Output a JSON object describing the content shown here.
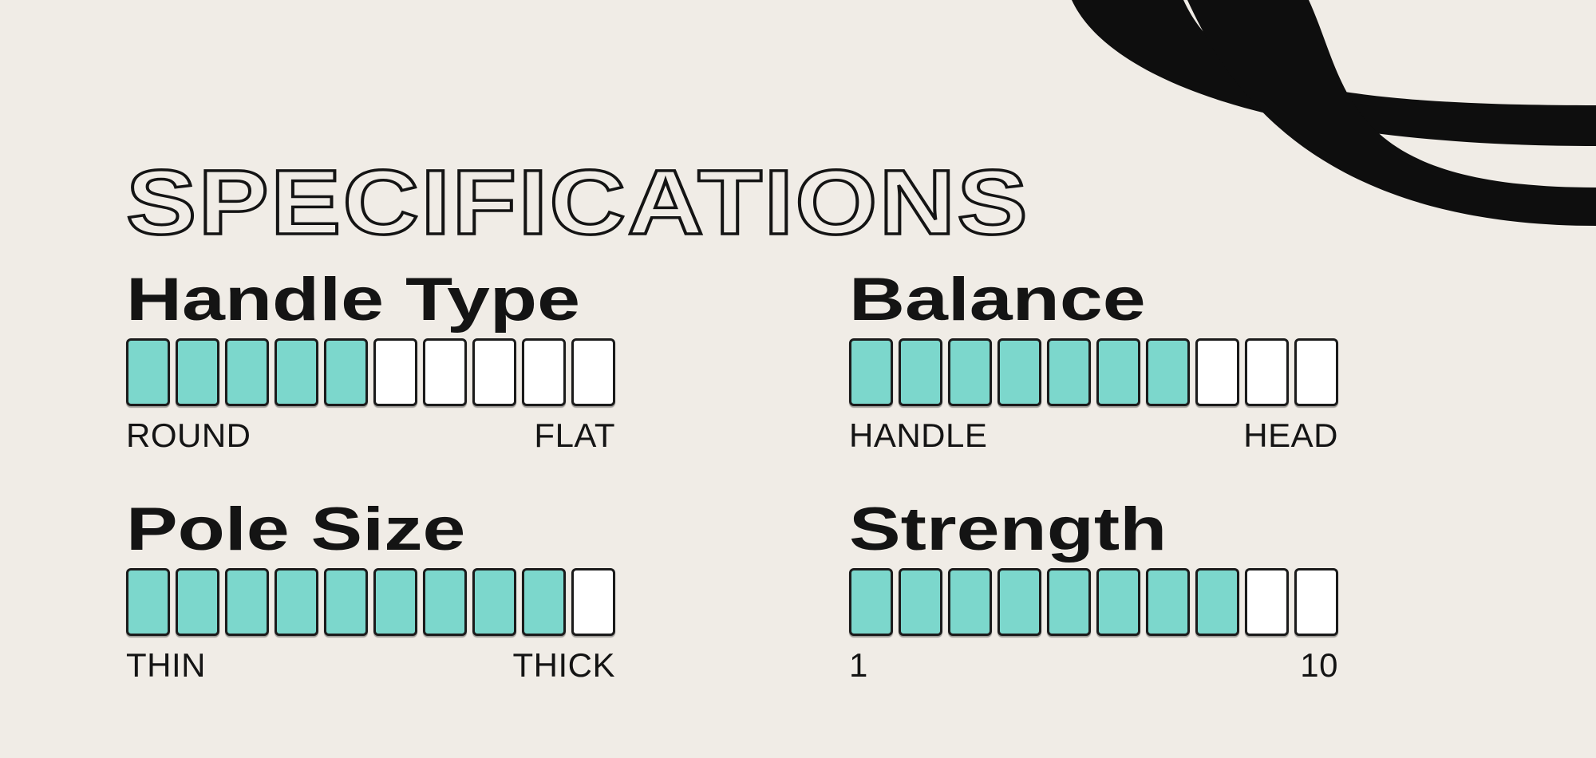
{
  "title": "SPECIFICATIONS",
  "specs": [
    {
      "name": "Handle Type",
      "value": 5,
      "max": 10,
      "left_label": "ROUND",
      "right_label": "FLAT"
    },
    {
      "name": "Balance",
      "value": 7,
      "max": 10,
      "left_label": "HANDLE",
      "right_label": "HEAD"
    },
    {
      "name": "Pole Size",
      "value": 9,
      "max": 10,
      "left_label": "THIN",
      "right_label": "THICK"
    },
    {
      "name": "Strength",
      "value": 8,
      "max": 10,
      "left_label": "1",
      "right_label": "10"
    }
  ],
  "colors": {
    "background": "#F0ECE6",
    "ink": "#141414",
    "segment_fill": "#7CD7CC",
    "segment_empty": "#FFFFFF"
  },
  "chart_data": {
    "type": "bar",
    "title": "SPECIFICATIONS",
    "categories": [
      "Handle Type",
      "Balance",
      "Pole Size",
      "Strength"
    ],
    "values": [
      5,
      7,
      9,
      8
    ],
    "value_range": [
      0,
      10
    ],
    "segments_per_bar": 10,
    "endpoint_labels": [
      [
        "ROUND",
        "FLAT"
      ],
      [
        "HANDLE",
        "HEAD"
      ],
      [
        "THIN",
        "THICK"
      ],
      [
        "1",
        "10"
      ]
    ],
    "legend": "none",
    "grid": false
  }
}
